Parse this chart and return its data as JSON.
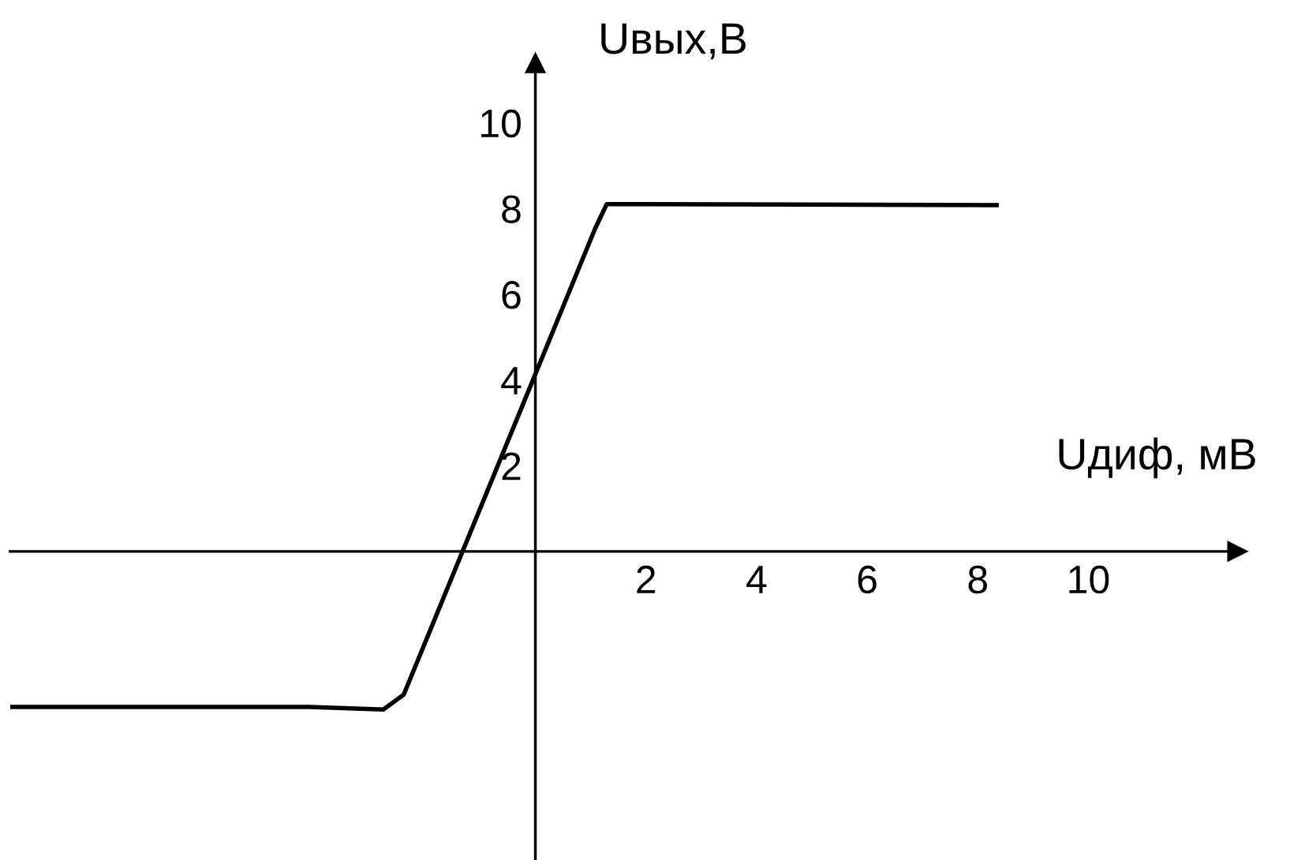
{
  "chart_data": {
    "type": "line",
    "xlabel": "Uдиф, мВ",
    "ylabel": "Uвых,В",
    "xlim": [
      -9.5,
      12.7
    ],
    "ylim": [
      -7.2,
      11.4
    ],
    "xticks": [
      2,
      4,
      6,
      8,
      10
    ],
    "yticks": [
      2,
      4,
      6,
      8,
      10
    ],
    "grid": false,
    "line_style": "solid",
    "marker": "none",
    "series": [
      {
        "color": "#000000",
        "x": [
          -9.5,
          -4.1,
          -2.75,
          -2.38,
          1.08,
          1.29,
          1.91,
          8.38
        ],
        "values": [
          -3.63,
          -3.63,
          -3.69,
          -3.34,
          7.53,
          8.1,
          8.1,
          8.08
        ]
      }
    ]
  }
}
